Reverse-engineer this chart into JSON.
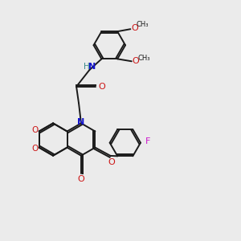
{
  "bg_color": "#ebebeb",
  "bond_color": "#1a1a1a",
  "bond_width": 1.4,
  "N_color": "#1414cc",
  "O_color": "#cc1414",
  "F_color": "#cc14cc",
  "H_color": "#3a8a8a",
  "figsize": [
    3.0,
    3.0
  ],
  "dpi": 100,
  "xlim": [
    0,
    10
  ],
  "ylim": [
    0,
    10
  ]
}
